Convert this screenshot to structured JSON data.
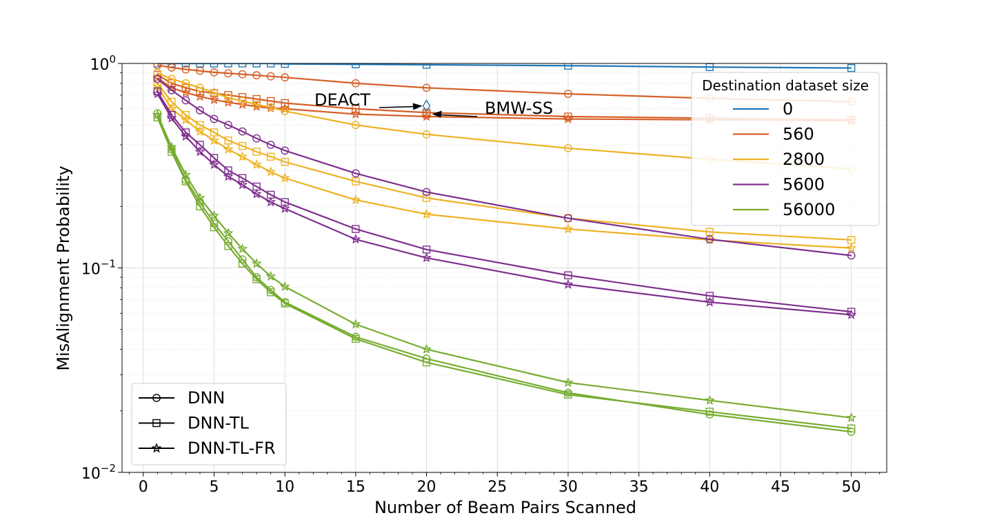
{
  "chart_data": {
    "type": "line",
    "title": "",
    "xlabel": "Number of Beam Pairs Scanned",
    "ylabel": "MisAlignment Probability",
    "xscale": "linear",
    "yscale": "log",
    "xlim": [
      -1.5,
      52.5
    ],
    "ylim": [
      0.01,
      1
    ],
    "grid": "major and minor",
    "x_ticks": [
      0,
      5,
      10,
      15,
      20,
      25,
      30,
      35,
      40,
      45,
      50
    ],
    "x_tick_labels": [
      "0",
      "5",
      "10",
      "15",
      "20",
      "25",
      "30",
      "35",
      "40",
      "45",
      "50"
    ],
    "y_ticks": [
      0.01,
      0.1,
      1
    ],
    "y_tick_labels": [
      {
        "base": "10",
        "exp": "−2"
      },
      {
        "base": "10",
        "exp": "−1"
      },
      {
        "base": "10",
        "exp": "0"
      }
    ],
    "x": [
      1,
      2,
      3,
      4,
      5,
      6,
      7,
      8,
      9,
      10,
      15,
      20,
      30,
      40,
      50
    ],
    "colors": {
      "0": "#1f77b4",
      "560": "#d65f27",
      "2800": "#edb120",
      "5600": "#7e2f8e",
      "56000": "#77ac30"
    },
    "series": [
      {
        "dataset": "0",
        "method": "DNN-TL",
        "marker": "square",
        "values": [
          1.0,
          1.0,
          1.0,
          1.0,
          1.0,
          1.0,
          1.0,
          1.0,
          1.0,
          0.995,
          0.99,
          0.985,
          0.975,
          0.96,
          0.95
        ]
      },
      {
        "dataset": "560",
        "method": "DNN",
        "marker": "circle",
        "values": [
          0.98,
          0.955,
          0.935,
          0.92,
          0.905,
          0.895,
          0.885,
          0.875,
          0.865,
          0.855,
          0.8,
          0.76,
          0.71,
          0.675,
          0.65
        ]
      },
      {
        "dataset": "560",
        "method": "DNN-TL",
        "marker": "square",
        "values": [
          0.88,
          0.8,
          0.76,
          0.73,
          0.715,
          0.7,
          0.685,
          0.67,
          0.655,
          0.64,
          0.6,
          0.575,
          0.55,
          0.54,
          0.53
        ]
      },
      {
        "dataset": "560",
        "method": "DNN-TL-FR",
        "marker": "star",
        "values": [
          0.85,
          0.76,
          0.72,
          0.69,
          0.665,
          0.645,
          0.63,
          0.615,
          0.605,
          0.6,
          0.565,
          0.55,
          0.535,
          0.53,
          0.525
        ]
      },
      {
        "dataset": "2800",
        "method": "DNN",
        "marker": "circle",
        "values": [
          0.9,
          0.84,
          0.8,
          0.76,
          0.72,
          0.68,
          0.655,
          0.63,
          0.61,
          0.585,
          0.5,
          0.45,
          0.385,
          0.34,
          0.305
        ]
      },
      {
        "dataset": "2800",
        "method": "DNN-TL",
        "marker": "square",
        "values": [
          0.8,
          0.65,
          0.56,
          0.5,
          0.46,
          0.42,
          0.395,
          0.37,
          0.35,
          0.33,
          0.265,
          0.22,
          0.175,
          0.15,
          0.137
        ]
      },
      {
        "dataset": "2800",
        "method": "DNN-TL-FR",
        "marker": "star",
        "values": [
          0.77,
          0.6,
          0.53,
          0.465,
          0.42,
          0.38,
          0.35,
          0.32,
          0.295,
          0.275,
          0.215,
          0.183,
          0.155,
          0.137,
          0.125
        ]
      },
      {
        "dataset": "5600",
        "method": "DNN",
        "marker": "circle",
        "values": [
          0.84,
          0.74,
          0.66,
          0.59,
          0.535,
          0.5,
          0.465,
          0.43,
          0.4,
          0.375,
          0.29,
          0.235,
          0.175,
          0.138,
          0.115
        ]
      },
      {
        "dataset": "5600",
        "method": "DNN-TL",
        "marker": "square",
        "values": [
          0.73,
          0.56,
          0.46,
          0.4,
          0.345,
          0.3,
          0.275,
          0.25,
          0.228,
          0.21,
          0.155,
          0.123,
          0.092,
          0.073,
          0.061
        ]
      },
      {
        "dataset": "5600",
        "method": "DNN-TL-FR",
        "marker": "star",
        "values": [
          0.71,
          0.54,
          0.44,
          0.37,
          0.32,
          0.28,
          0.255,
          0.23,
          0.21,
          0.195,
          0.138,
          0.112,
          0.083,
          0.068,
          0.059
        ]
      },
      {
        "dataset": "56000",
        "method": "DNN",
        "marker": "circle",
        "values": [
          0.57,
          0.38,
          0.27,
          0.21,
          0.165,
          0.135,
          0.11,
          0.09,
          0.078,
          0.068,
          0.046,
          0.036,
          0.0245,
          0.0192,
          0.0158
        ]
      },
      {
        "dataset": "56000",
        "method": "DNN-TL",
        "marker": "square",
        "values": [
          0.545,
          0.37,
          0.265,
          0.2,
          0.158,
          0.128,
          0.105,
          0.088,
          0.076,
          0.067,
          0.045,
          0.0345,
          0.024,
          0.0198,
          0.0164
        ]
      },
      {
        "dataset": "56000",
        "method": "DNN-TL-FR",
        "marker": "star",
        "values": [
          0.56,
          0.39,
          0.285,
          0.22,
          0.18,
          0.148,
          0.124,
          0.105,
          0.091,
          0.081,
          0.053,
          0.04,
          0.0275,
          0.0225,
          0.0185
        ]
      }
    ],
    "points": [
      {
        "label": "DEACT",
        "x": 20,
        "y": 0.62,
        "marker": "diamond",
        "color": "#1f77b4"
      },
      {
        "label": "BMW-SS",
        "x": 20,
        "y": 0.565,
        "marker": "square",
        "color": "#d65f27"
      }
    ],
    "annotations": [
      {
        "text": "DEACT",
        "x": 20,
        "y": 0.62
      },
      {
        "text": "BMW-SS",
        "x": 20,
        "y": 0.565
      }
    ],
    "legend_datasets": {
      "title": "Destination dataset size",
      "placement": "top-right",
      "entries": [
        "0",
        "560",
        "2800",
        "5600",
        "56000"
      ]
    },
    "legend_methods": {
      "placement": "lower-left",
      "entries": [
        {
          "label": "DNN",
          "marker": "circle"
        },
        {
          "label": "DNN-TL",
          "marker": "square"
        },
        {
          "label": "DNN-TL-FR",
          "marker": "star"
        }
      ]
    }
  }
}
